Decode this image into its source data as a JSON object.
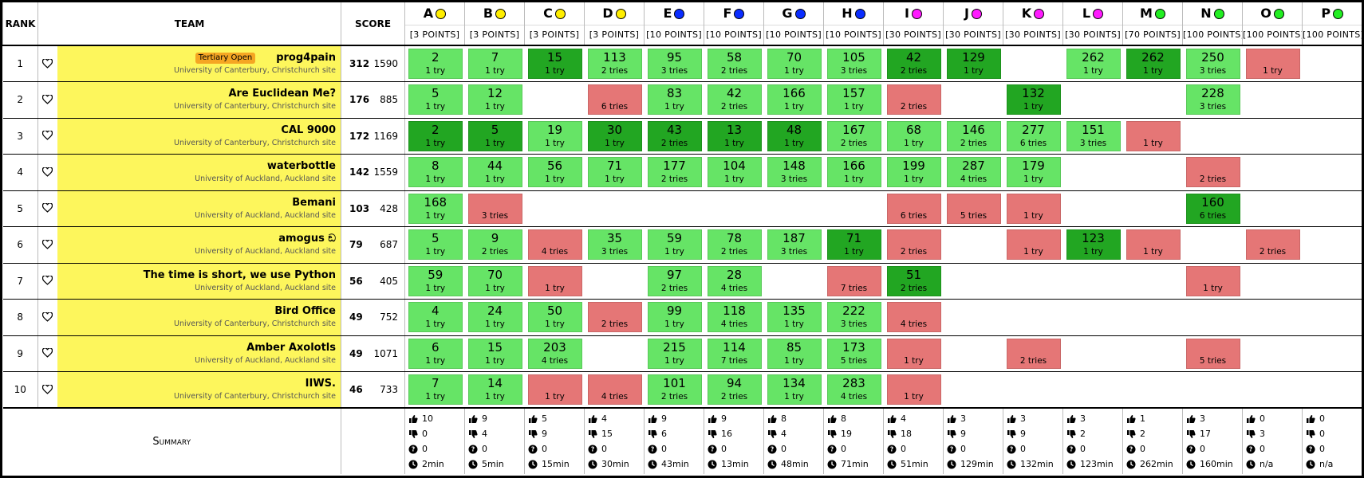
{
  "header": {
    "rank": "RANK",
    "team": "TEAM",
    "score": "SCORE"
  },
  "problems": [
    {
      "letter": "A",
      "color": "#ffee00",
      "points": "[3 POINTS]"
    },
    {
      "letter": "B",
      "color": "#ffee00",
      "points": "[3 POINTS]"
    },
    {
      "letter": "C",
      "color": "#ffee00",
      "points": "[3 POINTS]"
    },
    {
      "letter": "D",
      "color": "#ffee00",
      "points": "[3 POINTS]"
    },
    {
      "letter": "E",
      "color": "#0a2cff",
      "points": "[10 POINTS]"
    },
    {
      "letter": "F",
      "color": "#0a2cff",
      "points": "[10 POINTS]"
    },
    {
      "letter": "G",
      "color": "#0a2cff",
      "points": "[10 POINTS]"
    },
    {
      "letter": "H",
      "color": "#0a2cff",
      "points": "[10 POINTS]"
    },
    {
      "letter": "I",
      "color": "#ff1aff",
      "points": "[30 POINTS]"
    },
    {
      "letter": "J",
      "color": "#ff1aff",
      "points": "[30 POINTS]"
    },
    {
      "letter": "K",
      "color": "#ff1aff",
      "points": "[30 POINTS]"
    },
    {
      "letter": "L",
      "color": "#ff1aff",
      "points": "[30 POINTS]"
    },
    {
      "letter": "M",
      "color": "#22ee22",
      "points": "[70 POINTS]"
    },
    {
      "letter": "N",
      "color": "#22ee22",
      "points": "[100 POINTS]"
    },
    {
      "letter": "O",
      "color": "#22ee22",
      "points": "[100 POINTS]"
    },
    {
      "letter": "P",
      "color": "#22ee22",
      "points": "[100 POINTS]"
    }
  ],
  "rows": [
    {
      "rank": 1,
      "team": "prog4pain",
      "tag": "Tertiary Open",
      "affiliation": "University of Canterbury, Christchurch site",
      "solved": 312,
      "penalty": 1590,
      "cells": [
        {
          "time": 2,
          "tries": "1 try",
          "status": "solved"
        },
        {
          "time": 7,
          "tries": "1 try",
          "status": "solved"
        },
        {
          "time": 15,
          "tries": "1 try",
          "status": "first"
        },
        {
          "time": 113,
          "tries": "2 tries",
          "status": "solved"
        },
        {
          "time": 95,
          "tries": "3 tries",
          "status": "solved"
        },
        {
          "time": 58,
          "tries": "2 tries",
          "status": "solved"
        },
        {
          "time": 70,
          "tries": "1 try",
          "status": "solved"
        },
        {
          "time": 105,
          "tries": "3 tries",
          "status": "solved"
        },
        {
          "time": 42,
          "tries": "2 tries",
          "status": "first"
        },
        {
          "time": 129,
          "tries": "1 try",
          "status": "first"
        },
        null,
        {
          "time": 262,
          "tries": "1 try",
          "status": "solved"
        },
        {
          "time": 262,
          "tries": "1 try",
          "status": "first"
        },
        {
          "time": 250,
          "tries": "3 tries",
          "status": "solved"
        },
        {
          "tries": "1 try",
          "status": "failed"
        },
        null
      ]
    },
    {
      "rank": 2,
      "team": "Are Euclidean Me?",
      "affiliation": "University of Canterbury, Christchurch site",
      "solved": 176,
      "penalty": 885,
      "cells": [
        {
          "time": 5,
          "tries": "1 try",
          "status": "solved"
        },
        {
          "time": 12,
          "tries": "1 try",
          "status": "solved"
        },
        null,
        {
          "tries": "6 tries",
          "status": "failed"
        },
        {
          "time": 83,
          "tries": "1 try",
          "status": "solved"
        },
        {
          "time": 42,
          "tries": "2 tries",
          "status": "solved"
        },
        {
          "time": 166,
          "tries": "1 try",
          "status": "solved"
        },
        {
          "time": 157,
          "tries": "1 try",
          "status": "solved"
        },
        {
          "tries": "2 tries",
          "status": "failed"
        },
        null,
        {
          "time": 132,
          "tries": "1 try",
          "status": "first"
        },
        null,
        null,
        {
          "time": 228,
          "tries": "3 tries",
          "status": "solved"
        },
        null,
        null
      ]
    },
    {
      "rank": 3,
      "team": "CAL 9000",
      "affiliation": "University of Canterbury, Christchurch site",
      "solved": 172,
      "penalty": 1169,
      "cells": [
        {
          "time": 2,
          "tries": "1 try",
          "status": "first"
        },
        {
          "time": 5,
          "tries": "1 try",
          "status": "first"
        },
        {
          "time": 19,
          "tries": "1 try",
          "status": "solved"
        },
        {
          "time": 30,
          "tries": "1 try",
          "status": "first"
        },
        {
          "time": 43,
          "tries": "2 tries",
          "status": "first"
        },
        {
          "time": 13,
          "tries": "1 try",
          "status": "first"
        },
        {
          "time": 48,
          "tries": "1 try",
          "status": "first"
        },
        {
          "time": 167,
          "tries": "2 tries",
          "status": "solved"
        },
        {
          "time": 68,
          "tries": "1 try",
          "status": "solved"
        },
        {
          "time": 146,
          "tries": "2 tries",
          "status": "solved"
        },
        {
          "time": 277,
          "tries": "6 tries",
          "status": "solved"
        },
        {
          "time": 151,
          "tries": "3 tries",
          "status": "solved"
        },
        {
          "tries": "1 try",
          "status": "failed"
        },
        null,
        null,
        null
      ]
    },
    {
      "rank": 4,
      "team": "waterbottle",
      "affiliation": "University of Auckland, Auckland site",
      "solved": 142,
      "penalty": 1559,
      "cells": [
        {
          "time": 8,
          "tries": "1 try",
          "status": "solved"
        },
        {
          "time": 44,
          "tries": "1 try",
          "status": "solved"
        },
        {
          "time": 56,
          "tries": "1 try",
          "status": "solved"
        },
        {
          "time": 71,
          "tries": "1 try",
          "status": "solved"
        },
        {
          "time": 177,
          "tries": "2 tries",
          "status": "solved"
        },
        {
          "time": 104,
          "tries": "1 try",
          "status": "solved"
        },
        {
          "time": 148,
          "tries": "3 tries",
          "status": "solved"
        },
        {
          "time": 166,
          "tries": "1 try",
          "status": "solved"
        },
        {
          "time": 199,
          "tries": "1 try",
          "status": "solved"
        },
        {
          "time": 287,
          "tries": "4 tries",
          "status": "solved"
        },
        {
          "time": 179,
          "tries": "1 try",
          "status": "solved"
        },
        null,
        null,
        {
          "tries": "2 tries",
          "status": "failed"
        },
        null,
        null
      ]
    },
    {
      "rank": 5,
      "team": "Bemani",
      "affiliation": "University of Auckland, Auckland site",
      "solved": 103,
      "penalty": 428,
      "cells": [
        {
          "time": 168,
          "tries": "1 try",
          "status": "solved"
        },
        {
          "tries": "3 tries",
          "status": "failed"
        },
        null,
        null,
        null,
        null,
        null,
        null,
        {
          "tries": "6 tries",
          "status": "failed"
        },
        {
          "tries": "5 tries",
          "status": "failed"
        },
        {
          "tries": "1 try",
          "status": "failed"
        },
        null,
        null,
        {
          "time": 160,
          "tries": "6 tries",
          "status": "first"
        },
        null,
        null
      ]
    },
    {
      "rank": 6,
      "team": "amogus ඞ",
      "affiliation": "University of Auckland, Auckland site",
      "solved": 79,
      "penalty": 687,
      "cells": [
        {
          "time": 5,
          "tries": "1 try",
          "status": "solved"
        },
        {
          "time": 9,
          "tries": "2 tries",
          "status": "solved"
        },
        {
          "tries": "4 tries",
          "status": "failed"
        },
        {
          "time": 35,
          "tries": "3 tries",
          "status": "solved"
        },
        {
          "time": 59,
          "tries": "1 try",
          "status": "solved"
        },
        {
          "time": 78,
          "tries": "2 tries",
          "status": "solved"
        },
        {
          "time": 187,
          "tries": "3 tries",
          "status": "solved"
        },
        {
          "time": 71,
          "tries": "1 try",
          "status": "first"
        },
        {
          "tries": "2 tries",
          "status": "failed"
        },
        null,
        {
          "tries": "1 try",
          "status": "failed"
        },
        {
          "time": 123,
          "tries": "1 try",
          "status": "first"
        },
        {
          "tries": "1 try",
          "status": "failed"
        },
        null,
        {
          "tries": "2 tries",
          "status": "failed"
        },
        null
      ]
    },
    {
      "rank": 7,
      "team": "The time is short, we use Python",
      "affiliation": "University of Auckland, Auckland site",
      "solved": 56,
      "penalty": 405,
      "cells": [
        {
          "time": 59,
          "tries": "1 try",
          "status": "solved"
        },
        {
          "time": 70,
          "tries": "1 try",
          "status": "solved"
        },
        {
          "tries": "1 try",
          "status": "failed"
        },
        null,
        {
          "time": 97,
          "tries": "2 tries",
          "status": "solved"
        },
        {
          "time": 28,
          "tries": "4 tries",
          "status": "solved"
        },
        null,
        {
          "tries": "7 tries",
          "status": "failed"
        },
        {
          "time": 51,
          "tries": "2 tries",
          "status": "first"
        },
        null,
        null,
        null,
        null,
        {
          "tries": "1 try",
          "status": "failed"
        },
        null,
        null
      ]
    },
    {
      "rank": 8,
      "team": "Bird Office",
      "affiliation": "University of Canterbury, Christchurch site",
      "solved": 49,
      "penalty": 752,
      "cells": [
        {
          "time": 4,
          "tries": "1 try",
          "status": "solved"
        },
        {
          "time": 24,
          "tries": "1 try",
          "status": "solved"
        },
        {
          "time": 50,
          "tries": "1 try",
          "status": "solved"
        },
        {
          "tries": "2 tries",
          "status": "failed"
        },
        {
          "time": 99,
          "tries": "1 try",
          "status": "solved"
        },
        {
          "time": 118,
          "tries": "4 tries",
          "status": "solved"
        },
        {
          "time": 135,
          "tries": "1 try",
          "status": "solved"
        },
        {
          "time": 222,
          "tries": "3 tries",
          "status": "solved"
        },
        {
          "tries": "4 tries",
          "status": "failed"
        },
        null,
        null,
        null,
        null,
        null,
        null,
        null
      ]
    },
    {
      "rank": 9,
      "team": "Amber Axolotls",
      "affiliation": "University of Auckland, Auckland site",
      "solved": 49,
      "penalty": 1071,
      "cells": [
        {
          "time": 6,
          "tries": "1 try",
          "status": "solved"
        },
        {
          "time": 15,
          "tries": "1 try",
          "status": "solved"
        },
        {
          "time": 203,
          "tries": "4 tries",
          "status": "solved"
        },
        null,
        {
          "time": 215,
          "tries": "1 try",
          "status": "solved"
        },
        {
          "time": 114,
          "tries": "7 tries",
          "status": "solved"
        },
        {
          "time": 85,
          "tries": "1 try",
          "status": "solved"
        },
        {
          "time": 173,
          "tries": "5 tries",
          "status": "solved"
        },
        {
          "tries": "1 try",
          "status": "failed"
        },
        null,
        {
          "tries": "2 tries",
          "status": "failed"
        },
        null,
        null,
        {
          "tries": "5 tries",
          "status": "failed"
        },
        null,
        null
      ]
    },
    {
      "rank": 10,
      "team": "IIWS.",
      "affiliation": "University of Canterbury, Christchurch site",
      "solved": 46,
      "penalty": 733,
      "cells": [
        {
          "time": 7,
          "tries": "1 try",
          "status": "solved"
        },
        {
          "time": 14,
          "tries": "1 try",
          "status": "solved"
        },
        {
          "tries": "1 try",
          "status": "failed"
        },
        {
          "tries": "4 tries",
          "status": "failed"
        },
        {
          "time": 101,
          "tries": "2 tries",
          "status": "solved"
        },
        {
          "time": 94,
          "tries": "2 tries",
          "status": "solved"
        },
        {
          "time": 134,
          "tries": "1 try",
          "status": "solved"
        },
        {
          "time": 283,
          "tries": "4 tries",
          "status": "solved"
        },
        {
          "tries": "1 try",
          "status": "failed"
        },
        null,
        null,
        null,
        null,
        null,
        null,
        null
      ]
    }
  ],
  "summary": {
    "label": "Summary",
    "stats": [
      {
        "accepted": 10,
        "rejected": 0,
        "pending": 0,
        "first": "2min"
      },
      {
        "accepted": 9,
        "rejected": 4,
        "pending": 0,
        "first": "5min"
      },
      {
        "accepted": 5,
        "rejected": 9,
        "pending": 0,
        "first": "15min"
      },
      {
        "accepted": 4,
        "rejected": 15,
        "pending": 0,
        "first": "30min"
      },
      {
        "accepted": 9,
        "rejected": 6,
        "pending": 0,
        "first": "43min"
      },
      {
        "accepted": 9,
        "rejected": 16,
        "pending": 0,
        "first": "13min"
      },
      {
        "accepted": 8,
        "rejected": 4,
        "pending": 0,
        "first": "48min"
      },
      {
        "accepted": 8,
        "rejected": 19,
        "pending": 0,
        "first": "71min"
      },
      {
        "accepted": 4,
        "rejected": 18,
        "pending": 0,
        "first": "51min"
      },
      {
        "accepted": 3,
        "rejected": 9,
        "pending": 0,
        "first": "129min"
      },
      {
        "accepted": 3,
        "rejected": 9,
        "pending": 0,
        "first": "132min"
      },
      {
        "accepted": 3,
        "rejected": 2,
        "pending": 0,
        "first": "123min"
      },
      {
        "accepted": 1,
        "rejected": 2,
        "pending": 0,
        "first": "262min"
      },
      {
        "accepted": 3,
        "rejected": 17,
        "pending": 0,
        "first": "160min"
      },
      {
        "accepted": 0,
        "rejected": 3,
        "pending": 0,
        "first": "n/a"
      },
      {
        "accepted": 0,
        "rejected": 0,
        "pending": 0,
        "first": "n/a"
      }
    ]
  }
}
